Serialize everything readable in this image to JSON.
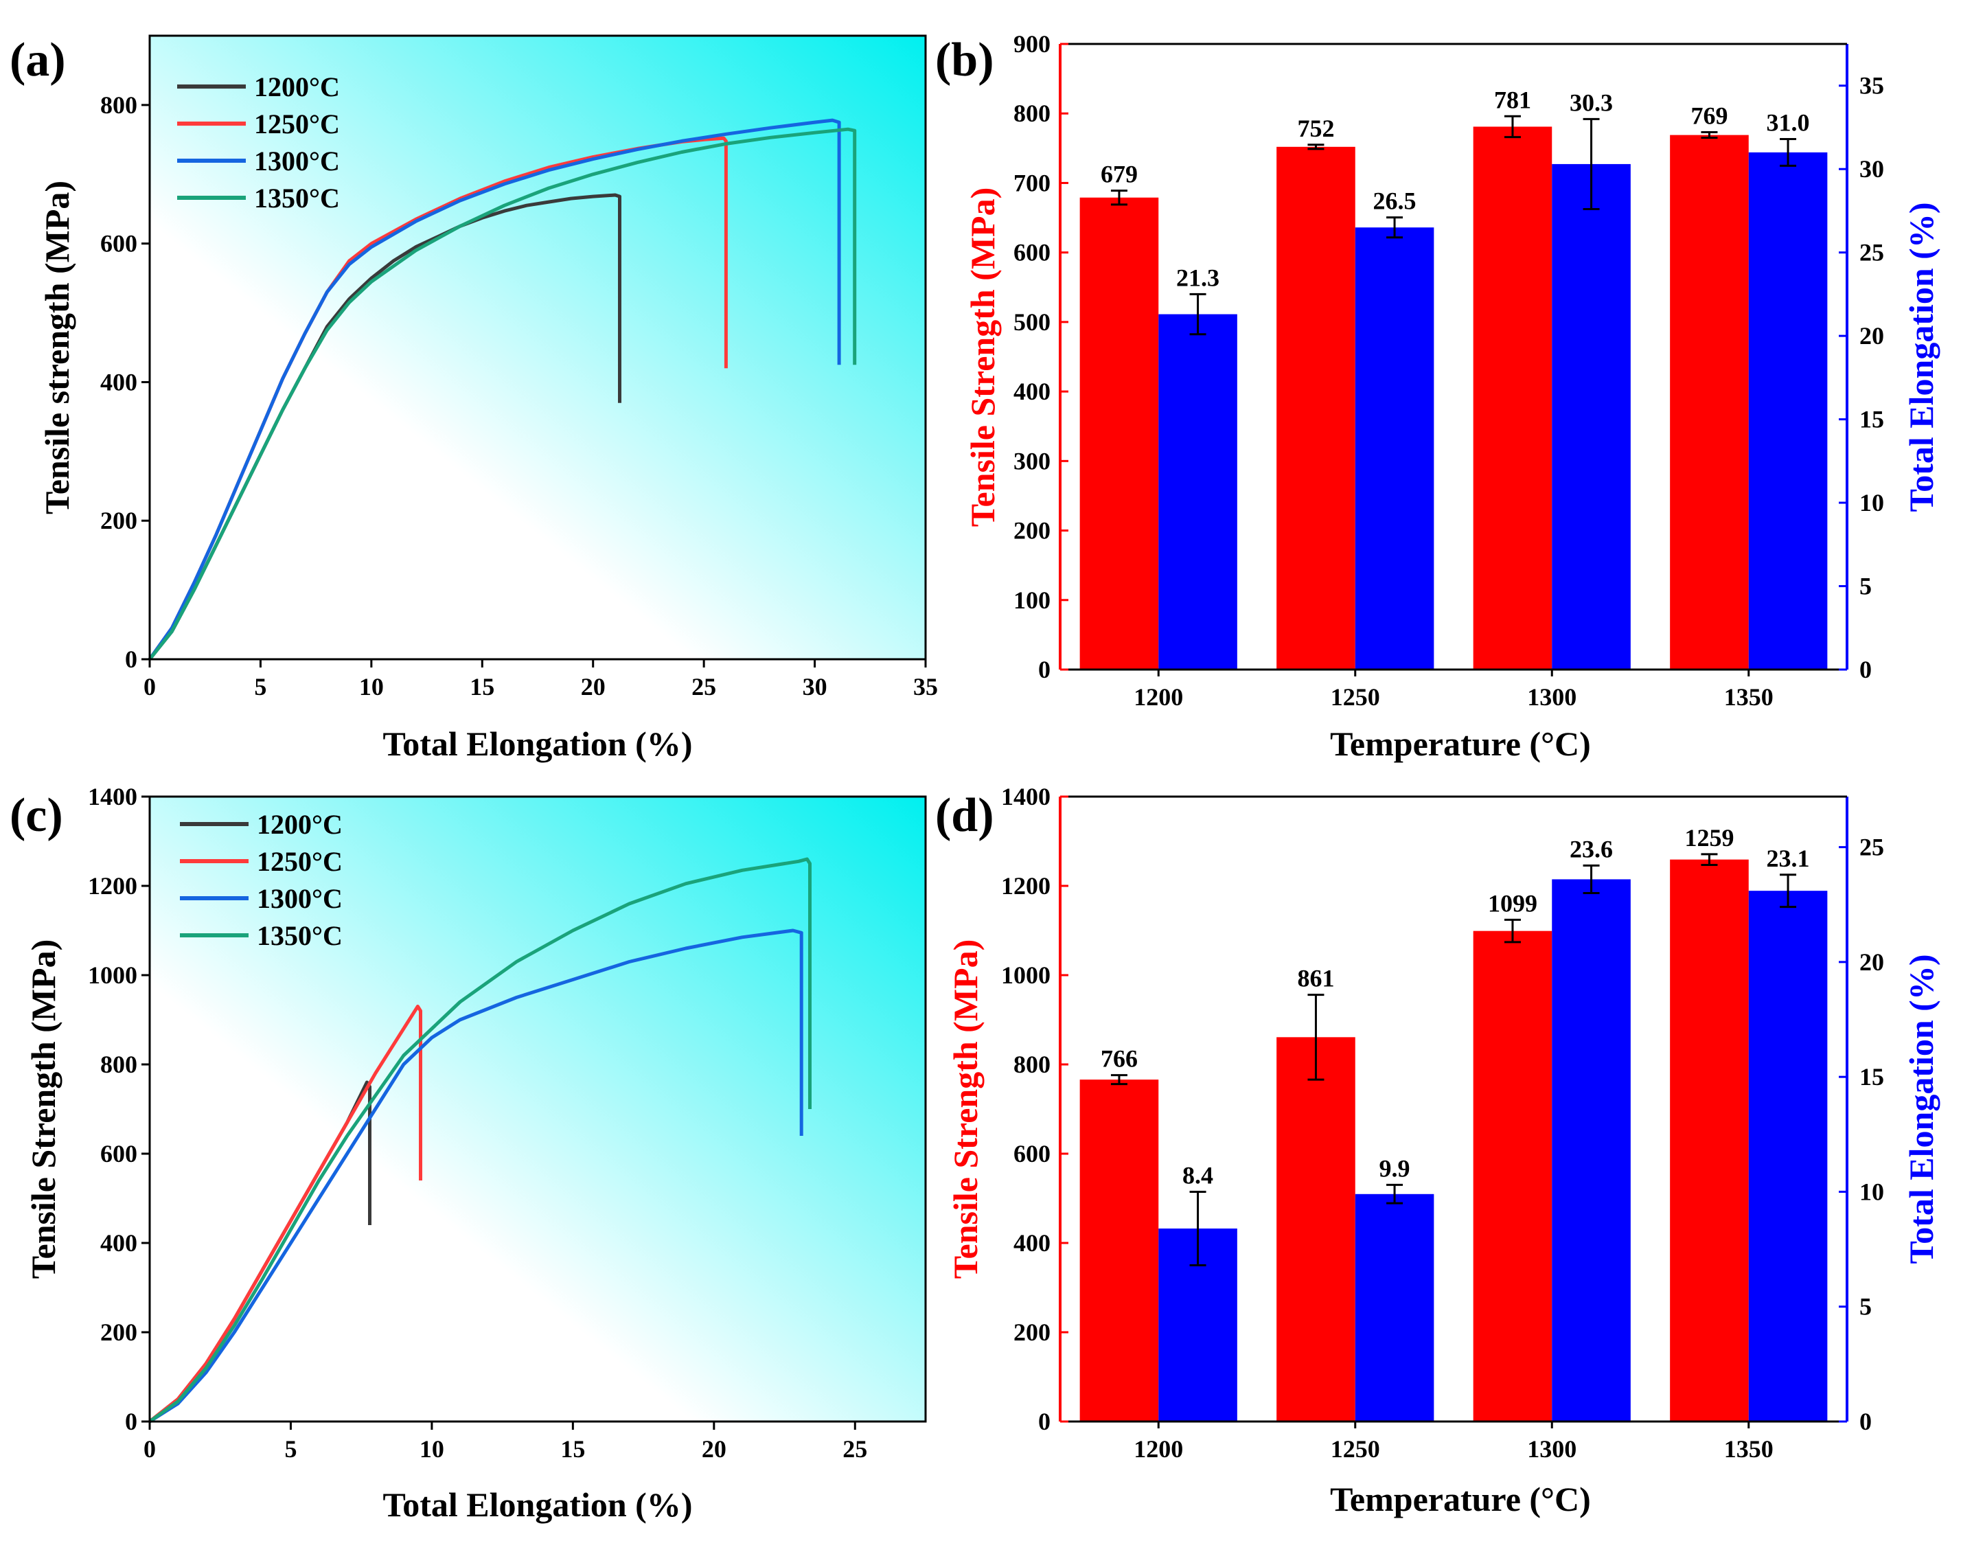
{
  "colors": {
    "T1200": "#3a3a3a",
    "T1250": "#ff3b3b",
    "T1300": "#1565e0",
    "T1350": "#1aa37a",
    "bar_strength": "#ff0000",
    "bar_elong": "#0000ff",
    "axis_red": "#ff0000",
    "axis_blue": "#0000ff",
    "bg_cyan": "#00f0f0",
    "bg_white": "#ffffff"
  },
  "chart_data": [
    {
      "panel": "(a)",
      "type": "line",
      "xlabel": "Total Elongation (%)",
      "ylabel": "Tensile strength (MPa)",
      "xlim": [
        0,
        35
      ],
      "ylim": [
        0,
        900
      ],
      "xticks": [
        "0",
        "5",
        "10",
        "15",
        "20",
        "25",
        "30",
        "35"
      ],
      "yticks": [
        "0",
        "200",
        "400",
        "600",
        "800"
      ],
      "legend": [
        "1200°C",
        "1250°C",
        "1300°C",
        "1350°C"
      ],
      "series": [
        {
          "name": "1200°C",
          "x": [
            0,
            1,
            2,
            3,
            4,
            5,
            6,
            7,
            8,
            9,
            10,
            11,
            12,
            13,
            14,
            15,
            16,
            17,
            18,
            19,
            20,
            21,
            21.2,
            21.2
          ],
          "y": [
            0,
            40,
            100,
            165,
            230,
            295,
            360,
            420,
            480,
            520,
            550,
            575,
            595,
            610,
            625,
            637,
            647,
            655,
            660,
            665,
            668,
            670,
            668,
            370
          ]
        },
        {
          "name": "1250°C",
          "x": [
            0,
            1,
            2,
            3,
            4,
            5,
            6,
            7,
            8,
            9,
            10,
            12,
            14,
            16,
            18,
            20,
            22,
            24,
            25,
            25.9,
            26,
            26
          ],
          "y": [
            0,
            45,
            110,
            180,
            255,
            330,
            405,
            470,
            530,
            575,
            600,
            635,
            665,
            690,
            710,
            725,
            737,
            747,
            750,
            752,
            748,
            420
          ]
        },
        {
          "name": "1300°C",
          "x": [
            0,
            1,
            2,
            3,
            4,
            5,
            6,
            7,
            8,
            9,
            10,
            12,
            14,
            16,
            18,
            20,
            22,
            24,
            26,
            28,
            30,
            30.8,
            31.1,
            31.1
          ],
          "y": [
            0,
            45,
            110,
            180,
            255,
            330,
            405,
            470,
            530,
            570,
            595,
            632,
            662,
            686,
            706,
            722,
            736,
            748,
            758,
            767,
            775,
            778,
            775,
            425
          ]
        },
        {
          "name": "1350°C",
          "x": [
            0,
            1,
            2,
            3,
            4,
            5,
            6,
            7,
            8,
            9,
            10,
            12,
            14,
            16,
            18,
            20,
            22,
            24,
            26,
            28,
            30,
            31.5,
            31.8,
            31.8
          ],
          "y": [
            0,
            40,
            100,
            165,
            230,
            295,
            360,
            420,
            475,
            515,
            545,
            590,
            625,
            655,
            680,
            700,
            717,
            732,
            744,
            753,
            760,
            765,
            763,
            425
          ]
        }
      ]
    },
    {
      "panel": "(b)",
      "type": "bar",
      "xlabel": "Temperature (°C)",
      "ylabel": "Tensile Strength (MPa)",
      "y2label": "Total Elongation (%)",
      "categories": [
        "1200",
        "1250",
        "1300",
        "1350"
      ],
      "ylim": [
        0,
        900
      ],
      "y2lim": [
        0,
        37.5
      ],
      "yticks": [
        "0",
        "100",
        "200",
        "300",
        "400",
        "500",
        "600",
        "700",
        "800",
        "900"
      ],
      "y2ticks": [
        "0",
        "5",
        "10",
        "15",
        "20",
        "25",
        "30",
        "35"
      ],
      "series": [
        {
          "name": "Tensile Strength",
          "axis": "left",
          "values": [
            679,
            752,
            781,
            769
          ],
          "errors": [
            10,
            3,
            15,
            4
          ],
          "labels": [
            "679",
            "752",
            "781",
            "769"
          ]
        },
        {
          "name": "Total Elongation",
          "axis": "right",
          "values": [
            21.3,
            26.5,
            30.3,
            31.0
          ],
          "errors": [
            1.2,
            0.6,
            2.7,
            0.8
          ],
          "labels": [
            "21.3",
            "26.5",
            "30.3",
            "31.0"
          ]
        }
      ]
    },
    {
      "panel": "(c)",
      "type": "line",
      "xlabel": "Total Elongation (%)",
      "ylabel": "Tensile Strength (MPa)",
      "xlim": [
        0,
        27.5
      ],
      "ylim": [
        0,
        1400
      ],
      "xticks": [
        "0",
        "5",
        "10",
        "15",
        "20",
        "25"
      ],
      "yticks": [
        "0",
        "200",
        "400",
        "600",
        "800",
        "1000",
        "1200",
        "1400"
      ],
      "legend": [
        "1200°C",
        "1250°C",
        "1300°C",
        "1350°C"
      ],
      "series": [
        {
          "name": "1200°C",
          "x": [
            0,
            1,
            2,
            3,
            4,
            5,
            6,
            7,
            7.7,
            7.8,
            7.8
          ],
          "y": [
            0,
            50,
            130,
            230,
            340,
            450,
            560,
            670,
            760,
            750,
            440
          ]
        },
        {
          "name": "1250°C",
          "x": [
            0,
            1,
            2,
            3,
            4,
            5,
            6,
            7,
            8,
            9,
            9.5,
            9.6,
            9.6
          ],
          "y": [
            0,
            50,
            130,
            230,
            340,
            450,
            560,
            670,
            780,
            880,
            930,
            920,
            540
          ]
        },
        {
          "name": "1300°C",
          "x": [
            0,
            1,
            2,
            3,
            4,
            5,
            6,
            7,
            8,
            9,
            10,
            11,
            13,
            15,
            17,
            19,
            21,
            22.8,
            23.1,
            23.1
          ],
          "y": [
            0,
            40,
            110,
            200,
            300,
            400,
            500,
            600,
            700,
            800,
            860,
            900,
            950,
            990,
            1030,
            1060,
            1085,
            1100,
            1095,
            640
          ]
        },
        {
          "name": "1350°C",
          "x": [
            0,
            1,
            2,
            3,
            4,
            5,
            6,
            7,
            8,
            9,
            10,
            11,
            13,
            15,
            17,
            19,
            21,
            23,
            23.3,
            23.4,
            23.4
          ],
          "y": [
            0,
            45,
            120,
            215,
            320,
            430,
            540,
            640,
            730,
            820,
            880,
            940,
            1030,
            1100,
            1160,
            1205,
            1235,
            1255,
            1260,
            1250,
            700
          ]
        }
      ]
    },
    {
      "panel": "(d)",
      "type": "bar",
      "xlabel": "Temperature (°C)",
      "ylabel": "Tensile Strength (MPa)",
      "y2label": "Total Elongation (%)",
      "categories": [
        "1200",
        "1250",
        "1300",
        "1350"
      ],
      "ylim": [
        0,
        1400
      ],
      "y2lim": [
        0,
        27.2
      ],
      "yticks": [
        "0",
        "200",
        "400",
        "600",
        "800",
        "1000",
        "1200",
        "1400"
      ],
      "y2ticks": [
        "0",
        "5",
        "10",
        "15",
        "20",
        "25"
      ],
      "series": [
        {
          "name": "Tensile Strength",
          "axis": "left",
          "values": [
            766,
            861,
            1099,
            1259
          ],
          "errors": [
            10,
            95,
            25,
            12
          ],
          "labels": [
            "766",
            "861",
            "1099",
            "1259"
          ]
        },
        {
          "name": "Total Elongation",
          "axis": "right",
          "values": [
            8.4,
            9.9,
            23.6,
            23.1
          ],
          "errors": [
            1.6,
            0.4,
            0.6,
            0.7
          ],
          "labels": [
            "8.4",
            "9.9",
            "23.6",
            "23.1"
          ]
        }
      ]
    }
  ]
}
